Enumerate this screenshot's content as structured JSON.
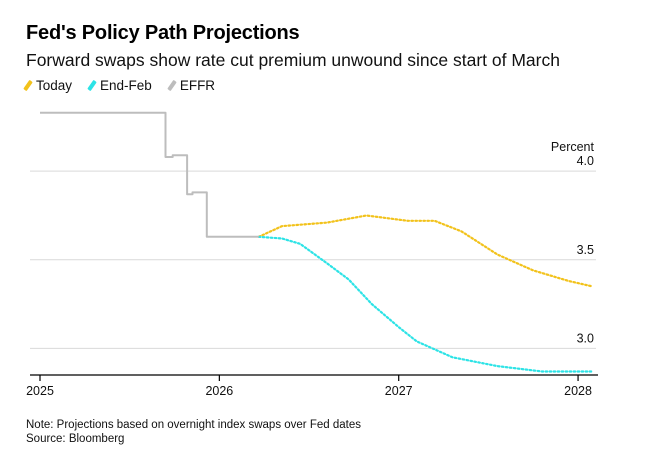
{
  "header": {
    "title": "Fed's Policy Path Projections",
    "subtitle": "Forward swaps show rate cut premium unwound since start of March"
  },
  "footer": {
    "note": "Note: Projections based on overnight index swaps over Fed dates",
    "source": "Source: Bloomberg"
  },
  "colors": {
    "today": "#f2c21b",
    "end_feb": "#2de3e6",
    "effr": "#bdbdbd",
    "grid": "#d9d9d9",
    "axis": "#000000"
  },
  "chart_data": {
    "type": "line",
    "title": "Fed's Policy Path Projections",
    "subtitle": "Forward swaps show rate cut premium unwound since start of March",
    "ylabel": "Percent",
    "xlim": [
      2025.0,
      2028.1
    ],
    "ylim": [
      2.85,
      4.3
    ],
    "x_ticks": [
      2025,
      2026,
      2027,
      2028
    ],
    "x_tick_labels": [
      "2025",
      "2026",
      "2027",
      "2028"
    ],
    "y_ticks": [
      3.0,
      3.5,
      4.0
    ],
    "y_tick_labels": [
      "3.0",
      "3.5",
      "4.0"
    ],
    "grid": true,
    "legend_position": "top-left",
    "series": [
      {
        "name": "Today",
        "style": "dotted",
        "color": "#f2c21b",
        "x": [
          2026.22,
          2026.35,
          2026.6,
          2026.82,
          2027.05,
          2027.2,
          2027.35,
          2027.55,
          2027.75,
          2027.95,
          2028.08
        ],
        "y": [
          3.63,
          3.69,
          3.71,
          3.75,
          3.72,
          3.72,
          3.66,
          3.53,
          3.44,
          3.38,
          3.35
        ]
      },
      {
        "name": "End-Feb",
        "style": "dotted",
        "color": "#2de3e6",
        "x": [
          2026.22,
          2026.35,
          2026.45,
          2026.6,
          2026.72,
          2026.85,
          2027.0,
          2027.1,
          2027.3,
          2027.55,
          2027.8,
          2028.08
        ],
        "y": [
          3.63,
          3.62,
          3.59,
          3.48,
          3.39,
          3.25,
          3.12,
          3.04,
          2.95,
          2.9,
          2.87,
          2.87
        ]
      },
      {
        "name": "EFFR",
        "style": "solid",
        "color": "#bdbdbd",
        "x": [
          2025.0,
          2025.7,
          2025.7,
          2025.74,
          2025.74,
          2025.82,
          2025.82,
          2025.85,
          2025.85,
          2025.93,
          2025.93,
          2026.22
        ],
        "y": [
          4.33,
          4.33,
          4.08,
          4.08,
          4.09,
          4.09,
          3.87,
          3.87,
          3.88,
          3.88,
          3.63,
          3.63
        ]
      }
    ]
  }
}
